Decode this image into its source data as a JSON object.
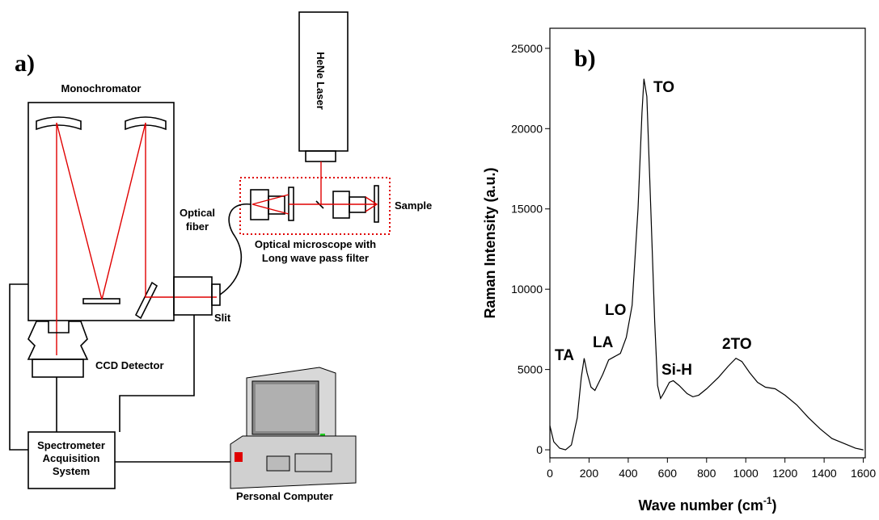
{
  "diagram": {
    "panel_label": "a)",
    "monochromator": "Monochromator",
    "laser": "HeNe Laser",
    "sample": "Sample",
    "fiber": [
      "Optical",
      "fiber"
    ],
    "microscope": [
      "Optical microscope with",
      "Long wave pass filter"
    ],
    "slit": "Slit",
    "ccd": "CCD Detector",
    "acquisition": [
      "Spectrometer",
      "Acquisition",
      "System"
    ],
    "computer": "Personal Computer"
  },
  "chart_data": {
    "type": "line",
    "panel_label": "b)",
    "ylabel": "Raman Intensity (a.u.)",
    "xlabel": {
      "text": "Wave number (cm",
      "superscript": "-1",
      "suffix": ")"
    },
    "annotations": [
      "TA",
      "LA",
      "LO",
      "TO",
      "Si-H",
      "2TO"
    ],
    "color": "#000000",
    "xlim": [
      0,
      1610
    ],
    "ylim": [
      -500,
      26250
    ],
    "xticks": [
      0,
      200,
      400,
      600,
      800,
      1000,
      1200,
      1400,
      1600
    ],
    "yticks": [
      0,
      5000,
      10000,
      15000,
      20000,
      25000
    ],
    "x": [
      0,
      20,
      50,
      80,
      110,
      140,
      160,
      175,
      190,
      210,
      230,
      250,
      270,
      300,
      330,
      360,
      390,
      420,
      450,
      470,
      480,
      495,
      515,
      535,
      550,
      565,
      580,
      610,
      630,
      660,
      700,
      730,
      760,
      800,
      860,
      910,
      950,
      980,
      1020,
      1060,
      1100,
      1150,
      1200,
      1260,
      1320,
      1380,
      1440,
      1500,
      1560,
      1600
    ],
    "values": [
      1500,
      500,
      100,
      0,
      300,
      2000,
      4500,
      5700,
      4800,
      3900,
      3700,
      4200,
      4700,
      5600,
      5800,
      6000,
      7000,
      9000,
      15000,
      21000,
      23100,
      22000,
      15000,
      8000,
      4000,
      3200,
      3500,
      4200,
      4300,
      4000,
      3500,
      3300,
      3400,
      3800,
      4500,
      5200,
      5700,
      5500,
      4800,
      4200,
      3900,
      3800,
      3400,
      2800,
      2000,
      1300,
      700,
      400,
      100,
      0
    ]
  }
}
